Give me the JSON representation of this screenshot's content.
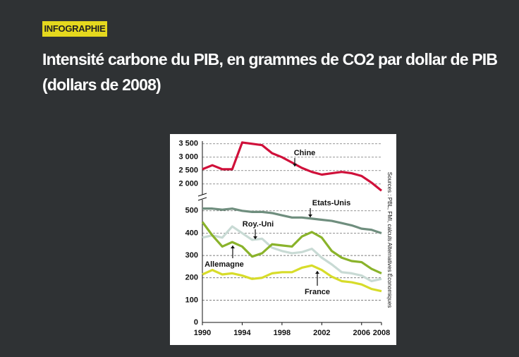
{
  "header": {
    "tag": "INFOGRAPHIE",
    "title": "Intensité carbone du PIB, en grammes de CO2 par dollar de PIB (dollars de 2008)"
  },
  "chart_data": {
    "type": "line",
    "x": [
      1990,
      1991,
      1992,
      1993,
      1994,
      1995,
      1996,
      1997,
      1998,
      1999,
      2000,
      2001,
      2002,
      2003,
      2004,
      2005,
      2006,
      2007,
      2008
    ],
    "xlim": [
      1990,
      2008
    ],
    "xticks": [
      1990,
      1994,
      1998,
      2002,
      2006,
      2008
    ],
    "ylim": [
      0,
      550
    ],
    "yticks": [
      0,
      100,
      200,
      300,
      400,
      500
    ],
    "y2lim": [
      1600,
      3600
    ],
    "y2ticks": [
      {
        "value": 2000,
        "label": "2 000"
      },
      {
        "value": 2500,
        "label": "2 500"
      },
      {
        "value": 3000,
        "label": "3 000"
      },
      {
        "value": 3500,
        "label": "3 500"
      }
    ],
    "grid": true,
    "series": [
      {
        "name": "Chine",
        "color": "#d0103a",
        "axis": "y2",
        "values": [
          2550,
          2700,
          2550,
          2550,
          3550,
          3500,
          3450,
          3150,
          3000,
          2800,
          2600,
          2450,
          2350,
          2400,
          2450,
          2400,
          2300,
          2050,
          1750
        ]
      },
      {
        "name": "Etats-Unis",
        "color": "#6f8e7e",
        "values": [
          510,
          510,
          505,
          510,
          500,
          495,
          495,
          490,
          480,
          470,
          470,
          465,
          460,
          455,
          445,
          435,
          420,
          415,
          400
        ]
      },
      {
        "name": "Roy.-Uni",
        "color": "#c8dad4",
        "values": [
          380,
          390,
          380,
          430,
          400,
          370,
          375,
          335,
          320,
          310,
          315,
          330,
          290,
          260,
          225,
          220,
          210,
          185,
          195
        ]
      },
      {
        "name": "Allemagne",
        "color": "#8ab32b",
        "values": [
          450,
          390,
          340,
          360,
          340,
          295,
          310,
          350,
          345,
          340,
          385,
          405,
          380,
          320,
          290,
          275,
          270,
          240,
          220
        ]
      },
      {
        "name": "France",
        "color": "#d7dc2a",
        "values": [
          215,
          235,
          215,
          220,
          210,
          195,
          200,
          220,
          225,
          225,
          245,
          255,
          235,
          205,
          185,
          180,
          170,
          150,
          140
        ]
      }
    ],
    "source": "Sources : PBL, FMI, calculs Alternatives Économiques"
  }
}
